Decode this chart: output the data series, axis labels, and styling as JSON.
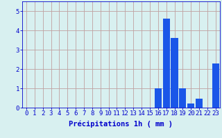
{
  "hours": [
    0,
    1,
    2,
    3,
    4,
    5,
    6,
    7,
    8,
    9,
    10,
    11,
    12,
    13,
    14,
    15,
    16,
    17,
    18,
    19,
    20,
    21,
    22,
    23
  ],
  "values": [
    0,
    0,
    0,
    0,
    0,
    0,
    0,
    0,
    0,
    0,
    0,
    0,
    0,
    0,
    0,
    0,
    1.0,
    4.6,
    3.6,
    1.0,
    0.2,
    0.45,
    0.0,
    2.3
  ],
  "bar_color": "#1a56e8",
  "background_color": "#d8f0f0",
  "grid_color": "#c0a0a0",
  "tick_color": "#0000cc",
  "xlabel": "Précipitations 1h ( mm )",
  "ylim": [
    0,
    5.5
  ],
  "yticks": [
    0,
    1,
    2,
    3,
    4,
    5
  ],
  "xlabel_fontsize": 7.5,
  "tick_fontsize": 6.5
}
